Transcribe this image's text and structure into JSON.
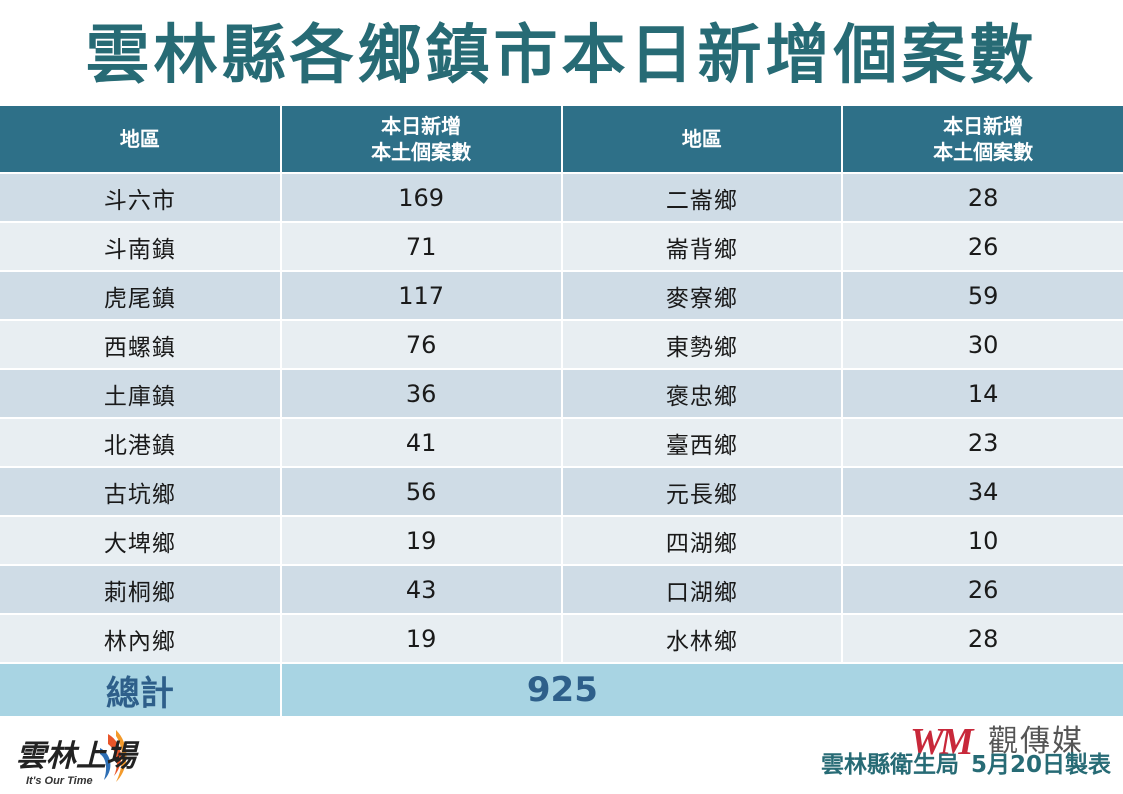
{
  "title": "雲林縣各鄉鎮市本日新增個案數",
  "table": {
    "headers": {
      "region": "地區",
      "cases_line1": "本日新增",
      "cases_line2": "本土個案數"
    },
    "rows": [
      {
        "left_name": "斗六市",
        "left_count": "169",
        "right_name": "二崙鄉",
        "right_count": "28"
      },
      {
        "left_name": "斗南鎮",
        "left_count": "71",
        "right_name": "崙背鄉",
        "right_count": "26"
      },
      {
        "left_name": "虎尾鎮",
        "left_count": "117",
        "right_name": "麥寮鄉",
        "right_count": "59"
      },
      {
        "left_name": "西螺鎮",
        "left_count": "76",
        "right_name": "東勢鄉",
        "right_count": "30"
      },
      {
        "left_name": "土庫鎮",
        "left_count": "36",
        "right_name": "褒忠鄉",
        "right_count": "14"
      },
      {
        "left_name": "北港鎮",
        "left_count": "41",
        "right_name": "臺西鄉",
        "right_count": "23"
      },
      {
        "left_name": "古坑鄉",
        "left_count": "56",
        "right_name": "元長鄉",
        "right_count": "34"
      },
      {
        "left_name": "大埤鄉",
        "left_count": "19",
        "right_name": "四湖鄉",
        "right_count": "10"
      },
      {
        "left_name": "莿桐鄉",
        "left_count": "43",
        "right_name": "口湖鄉",
        "right_count": "26"
      },
      {
        "left_name": "林內鄉",
        "left_count": "19",
        "right_name": "水林鄉",
        "right_count": "28"
      }
    ],
    "total_label": "總計",
    "total_value": "925"
  },
  "logo_left": {
    "text": "雲林上場",
    "tagline": "It's Our Time"
  },
  "brand": {
    "mark": "WM",
    "name": "觀傳媒"
  },
  "footer": {
    "agency": "雲林縣衛生局",
    "date_note": "5月20日製表"
  },
  "colors": {
    "title": "#276b75",
    "header_bg": "#2e7088",
    "row_odd": "#cfdce6",
    "row_even": "#e8eef2",
    "total_bg": "#a8d4e3",
    "total_text": "#2e5f8a",
    "brand_red": "#c8283a"
  }
}
